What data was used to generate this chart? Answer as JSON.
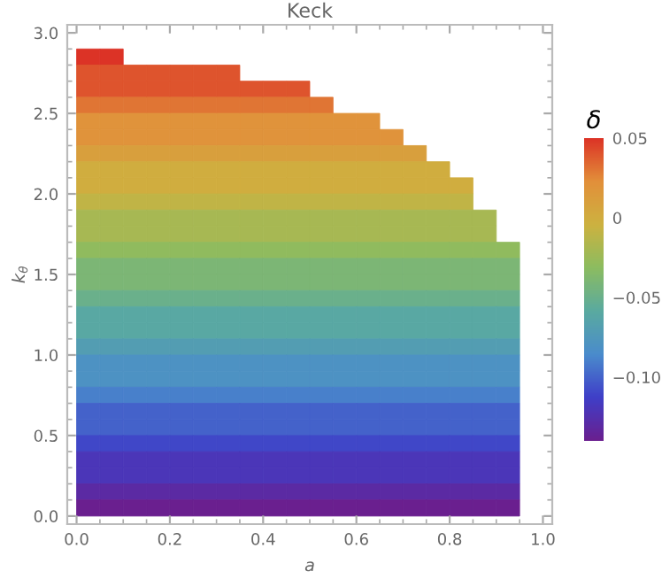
{
  "chart_data": {
    "type": "heatmap",
    "title": "Keck",
    "xlabel": "a",
    "ylabel": "k$_{θ}$",
    "clabel": "δ",
    "x": [
      0.025,
      0.075,
      0.125,
      0.175,
      0.225,
      0.275,
      0.325,
      0.375,
      0.425,
      0.475,
      0.525,
      0.575,
      0.625,
      0.675,
      0.725,
      0.775,
      0.825,
      0.875,
      0.925
    ],
    "y": [
      2.85,
      2.75,
      2.65,
      2.55,
      2.45,
      2.35,
      2.25,
      2.15,
      2.05,
      1.95,
      1.85,
      1.75,
      1.65,
      1.55,
      1.45,
      1.35,
      1.25,
      1.15,
      1.05,
      0.95,
      0.85,
      0.75,
      0.65,
      0.55,
      0.45,
      0.35,
      0.25,
      0.15,
      0.05
    ],
    "cells": [
      [
        0.05,
        0.05,
        null,
        null,
        null,
        null,
        null,
        null,
        null,
        null,
        null,
        null,
        null,
        null,
        null,
        null,
        null,
        null,
        null
      ],
      [
        0.04,
        0.04,
        0.04,
        0.04,
        0.04,
        0.04,
        0.04,
        null,
        null,
        null,
        null,
        null,
        null,
        null,
        null,
        null,
        null,
        null,
        null
      ],
      [
        0.04,
        0.04,
        0.04,
        0.04,
        0.04,
        0.04,
        0.04,
        0.04,
        0.04,
        0.04,
        null,
        null,
        null,
        null,
        null,
        null,
        null,
        null,
        null
      ],
      [
        0.03,
        0.03,
        0.03,
        0.03,
        0.03,
        0.03,
        0.03,
        0.03,
        0.03,
        0.03,
        0.03,
        null,
        null,
        null,
        null,
        null,
        null,
        null,
        null
      ],
      [
        0.02,
        0.02,
        0.02,
        0.02,
        0.02,
        0.02,
        0.02,
        0.02,
        0.02,
        0.02,
        0.02,
        0.02,
        0.02,
        null,
        null,
        null,
        null,
        null,
        null
      ],
      [
        0.02,
        0.02,
        0.02,
        0.02,
        0.02,
        0.02,
        0.02,
        0.02,
        0.02,
        0.02,
        0.02,
        0.02,
        0.02,
        0.02,
        null,
        null,
        null,
        null,
        null
      ],
      [
        0.01,
        0.01,
        0.01,
        0.01,
        0.01,
        0.01,
        0.01,
        0.01,
        0.01,
        0.01,
        0.01,
        0.01,
        0.01,
        0.01,
        0.01,
        null,
        null,
        null,
        null
      ],
      [
        0.0,
        0.0,
        0.0,
        0.0,
        0.0,
        0.0,
        0.0,
        0.0,
        0.0,
        0.0,
        0.0,
        0.0,
        0.0,
        0.0,
        0.0,
        0.0,
        null,
        null,
        null
      ],
      [
        0.0,
        0.0,
        0.0,
        0.0,
        0.0,
        0.0,
        0.0,
        0.0,
        0.0,
        0.0,
        0.0,
        0.0,
        0.0,
        0.0,
        0.0,
        0.0,
        0.0,
        null,
        null
      ],
      [
        -0.01,
        -0.01,
        -0.01,
        -0.01,
        -0.01,
        -0.01,
        -0.01,
        -0.01,
        -0.01,
        -0.01,
        -0.01,
        -0.01,
        -0.01,
        -0.01,
        -0.01,
        -0.01,
        -0.01,
        null,
        null
      ],
      [
        -0.02,
        -0.02,
        -0.02,
        -0.02,
        -0.02,
        -0.02,
        -0.02,
        -0.02,
        -0.02,
        -0.02,
        -0.02,
        -0.02,
        -0.02,
        -0.02,
        -0.02,
        -0.02,
        -0.02,
        -0.02,
        null
      ],
      [
        -0.02,
        -0.02,
        -0.02,
        -0.02,
        -0.02,
        -0.02,
        -0.02,
        -0.02,
        -0.02,
        -0.02,
        -0.02,
        -0.02,
        -0.02,
        -0.02,
        -0.02,
        -0.02,
        -0.02,
        -0.02,
        null
      ],
      [
        -0.03,
        -0.03,
        -0.03,
        -0.03,
        -0.03,
        -0.03,
        -0.03,
        -0.03,
        -0.03,
        -0.03,
        -0.03,
        -0.03,
        -0.03,
        -0.03,
        -0.03,
        -0.03,
        -0.03,
        -0.03,
        -0.03
      ],
      [
        -0.04,
        -0.04,
        -0.04,
        -0.04,
        -0.04,
        -0.04,
        -0.04,
        -0.04,
        -0.04,
        -0.04,
        -0.04,
        -0.04,
        -0.04,
        -0.04,
        -0.04,
        -0.04,
        -0.04,
        -0.04,
        -0.04
      ],
      [
        -0.04,
        -0.04,
        -0.04,
        -0.04,
        -0.04,
        -0.04,
        -0.04,
        -0.04,
        -0.04,
        -0.04,
        -0.04,
        -0.04,
        -0.04,
        -0.04,
        -0.04,
        -0.04,
        -0.04,
        -0.04,
        -0.04
      ],
      [
        -0.05,
        -0.05,
        -0.05,
        -0.05,
        -0.05,
        -0.05,
        -0.05,
        -0.05,
        -0.05,
        -0.05,
        -0.05,
        -0.05,
        -0.05,
        -0.05,
        -0.05,
        -0.05,
        -0.05,
        -0.05,
        -0.05
      ],
      [
        -0.06,
        -0.06,
        -0.06,
        -0.06,
        -0.06,
        -0.06,
        -0.06,
        -0.06,
        -0.06,
        -0.06,
        -0.06,
        -0.06,
        -0.06,
        -0.06,
        -0.06,
        -0.06,
        -0.06,
        -0.06,
        -0.06
      ],
      [
        -0.06,
        -0.06,
        -0.06,
        -0.06,
        -0.06,
        -0.06,
        -0.06,
        -0.06,
        -0.06,
        -0.06,
        -0.06,
        -0.06,
        -0.06,
        -0.06,
        -0.06,
        -0.06,
        -0.06,
        -0.06,
        -0.06
      ],
      [
        -0.07,
        -0.07,
        -0.07,
        -0.07,
        -0.07,
        -0.07,
        -0.07,
        -0.07,
        -0.07,
        -0.07,
        -0.07,
        -0.07,
        -0.07,
        -0.07,
        -0.07,
        -0.07,
        -0.07,
        -0.07,
        -0.07
      ],
      [
        -0.08,
        -0.08,
        -0.08,
        -0.08,
        -0.08,
        -0.08,
        -0.08,
        -0.08,
        -0.08,
        -0.08,
        -0.08,
        -0.08,
        -0.08,
        -0.08,
        -0.08,
        -0.08,
        -0.08,
        -0.08,
        -0.08
      ],
      [
        -0.08,
        -0.08,
        -0.08,
        -0.08,
        -0.08,
        -0.08,
        -0.08,
        -0.08,
        -0.08,
        -0.08,
        -0.08,
        -0.08,
        -0.08,
        -0.08,
        -0.08,
        -0.08,
        -0.08,
        -0.08,
        -0.08
      ],
      [
        -0.09,
        -0.09,
        -0.09,
        -0.09,
        -0.09,
        -0.09,
        -0.09,
        -0.09,
        -0.09,
        -0.09,
        -0.09,
        -0.09,
        -0.09,
        -0.09,
        -0.09,
        -0.09,
        -0.09,
        -0.09,
        -0.09
      ],
      [
        -0.1,
        -0.1,
        -0.1,
        -0.1,
        -0.1,
        -0.1,
        -0.1,
        -0.1,
        -0.1,
        -0.1,
        -0.1,
        -0.1,
        -0.1,
        -0.1,
        -0.1,
        -0.1,
        -0.1,
        -0.1,
        -0.1
      ],
      [
        -0.1,
        -0.1,
        -0.1,
        -0.1,
        -0.1,
        -0.1,
        -0.1,
        -0.1,
        -0.1,
        -0.1,
        -0.1,
        -0.1,
        -0.1,
        -0.1,
        -0.1,
        -0.1,
        -0.1,
        -0.1,
        -0.1
      ],
      [
        -0.11,
        -0.11,
        -0.11,
        -0.11,
        -0.11,
        -0.11,
        -0.11,
        -0.11,
        -0.11,
        -0.11,
        -0.11,
        -0.11,
        -0.11,
        -0.11,
        -0.11,
        -0.11,
        -0.11,
        -0.11,
        -0.11
      ],
      [
        -0.12,
        -0.12,
        -0.12,
        -0.12,
        -0.12,
        -0.12,
        -0.12,
        -0.12,
        -0.12,
        -0.12,
        -0.12,
        -0.12,
        -0.12,
        -0.12,
        -0.12,
        -0.12,
        -0.12,
        -0.12,
        -0.12
      ],
      [
        -0.12,
        -0.12,
        -0.12,
        -0.12,
        -0.12,
        -0.12,
        -0.12,
        -0.12,
        -0.12,
        -0.12,
        -0.12,
        -0.12,
        -0.12,
        -0.12,
        -0.12,
        -0.12,
        -0.12,
        -0.12,
        -0.12
      ],
      [
        -0.13,
        -0.13,
        -0.13,
        -0.13,
        -0.13,
        -0.13,
        -0.13,
        -0.13,
        -0.13,
        -0.13,
        -0.13,
        -0.13,
        -0.13,
        -0.13,
        -0.13,
        -0.13,
        -0.13,
        -0.13,
        -0.13
      ],
      [
        -0.14,
        -0.14,
        -0.14,
        -0.14,
        -0.14,
        -0.14,
        -0.14,
        -0.14,
        -0.14,
        -0.14,
        -0.14,
        -0.14,
        -0.14,
        -0.14,
        -0.14,
        -0.14,
        -0.14,
        -0.14,
        -0.14
      ]
    ],
    "colors": [
      "#6a1f8f",
      "#3f3fc8",
      "#4a8ccc",
      "#5aaaa0",
      "#8cbc60",
      "#cdb240",
      "#e2903a",
      "#dc3326"
    ],
    "clim": [
      -0.14,
      0.05
    ],
    "cticks": [
      {
        "value": 0.05,
        "label": "0.05"
      },
      {
        "value": 0,
        "label": "0"
      },
      {
        "value": -0.05,
        "label": "−0.05"
      },
      {
        "value": -0.1,
        "label": "−0.10"
      }
    ],
    "xlim": [
      -0.02,
      1.02
    ],
    "ylim": [
      -0.05,
      3.05
    ],
    "xticks": [
      {
        "value": 0,
        "label": "0.0"
      },
      {
        "value": 0.2,
        "label": "0.2"
      },
      {
        "value": 0.4,
        "label": "0.4"
      },
      {
        "value": 0.6,
        "label": "0.6"
      },
      {
        "value": 0.8,
        "label": "0.8"
      },
      {
        "value": 1,
        "label": "1.0"
      }
    ],
    "yticks": [
      {
        "value": 0,
        "label": "0.0"
      },
      {
        "value": 0.5,
        "label": "0.5"
      },
      {
        "value": 1,
        "label": "1.0"
      },
      {
        "value": 1.5,
        "label": "1.5"
      },
      {
        "value": 2,
        "label": "2.0"
      },
      {
        "value": 2.5,
        "label": "2.5"
      },
      {
        "value": 3,
        "label": "3.0"
      }
    ],
    "grid": false
  }
}
